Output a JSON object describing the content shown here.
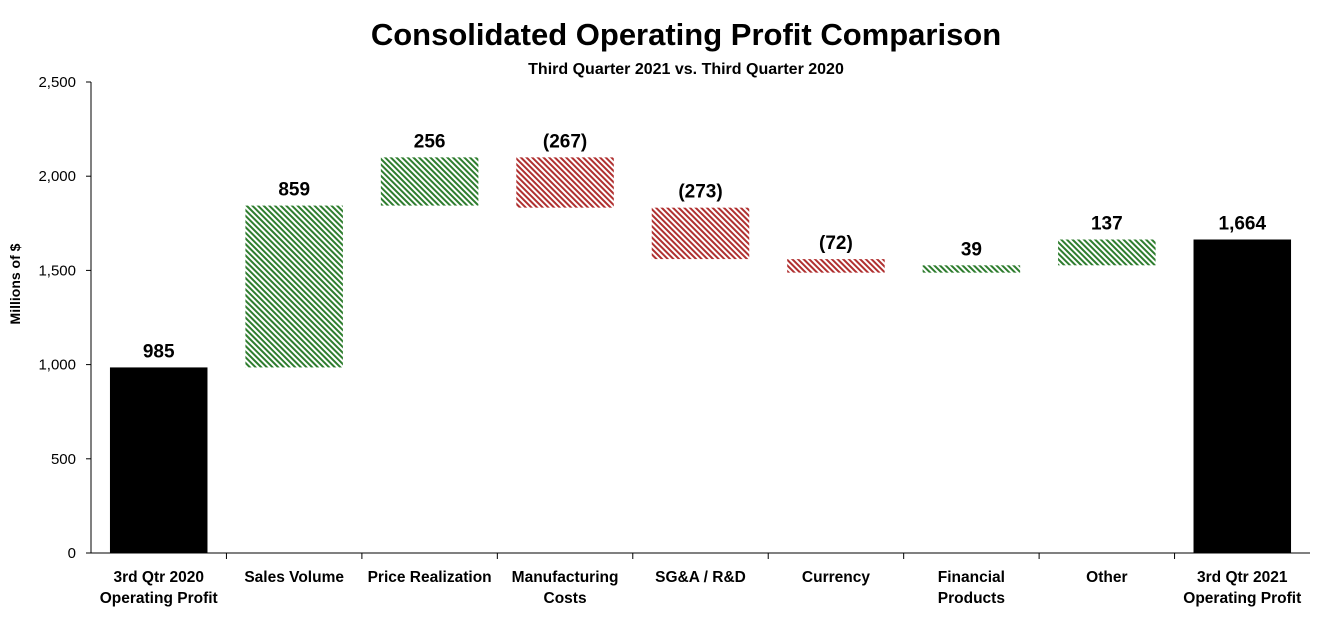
{
  "chart_data": {
    "type": "waterfall",
    "title": "Consolidated Operating Profit Comparison",
    "subtitle": "Third Quarter 2021 vs. Third Quarter 2020",
    "ylabel": "Millions of $",
    "xlabel": "",
    "ylim": [
      0,
      2500
    ],
    "yticks": [
      0,
      500,
      1000,
      1500,
      2000,
      2500
    ],
    "ytick_labels": [
      "0",
      "500",
      "1,000",
      "1,500",
      "2,000",
      "2,500"
    ],
    "categories": [
      [
        "3rd Qtr 2020",
        "Operating Profit"
      ],
      [
        "Sales Volume"
      ],
      [
        "Price Realization"
      ],
      [
        "Manufacturing",
        "Costs"
      ],
      [
        "SG&A / R&D"
      ],
      [
        "Currency"
      ],
      [
        "Financial",
        "Products"
      ],
      [
        "Other"
      ],
      [
        "3rd Qtr 2021",
        "Operating Profit"
      ]
    ],
    "values": [
      985,
      859,
      256,
      -267,
      -273,
      -72,
      39,
      137,
      1664
    ],
    "value_labels": [
      "985",
      "859",
      "256",
      "(267)",
      "(273)",
      "(72)",
      "39",
      "137",
      "1,664"
    ],
    "bar_kinds": [
      "total",
      "delta",
      "delta",
      "delta",
      "delta",
      "delta",
      "delta",
      "delta",
      "total"
    ],
    "colors": {
      "total": "#000000",
      "increase": "#2e7d2e",
      "decrease": "#b03030"
    },
    "grid": false,
    "legend": "none"
  }
}
